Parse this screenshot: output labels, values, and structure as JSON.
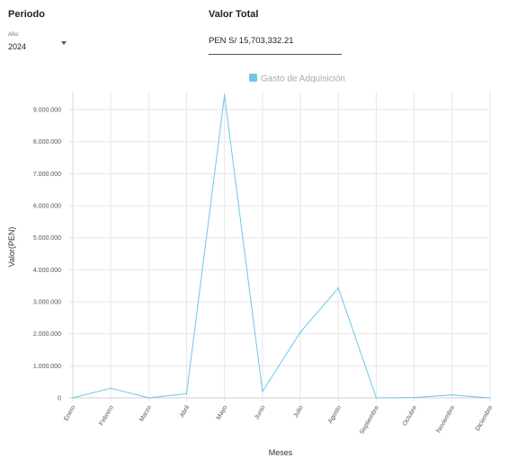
{
  "filters": {
    "period_title": "Periodo",
    "year_caption": "Año:",
    "year_value": "2024",
    "total_title": "Valor Total",
    "total_value": "PEN S/  15,703,332.21"
  },
  "colors": {
    "series": "#6ec6ea",
    "grid": "#e6e6e6"
  },
  "chart_data": {
    "type": "line",
    "categories": [
      "Enero",
      "Febrero",
      "Marzo",
      "Abril",
      "Mayo",
      "Junio",
      "Julio",
      "Agosto",
      "Septiembre",
      "Octubre",
      "Noviembre",
      "Diciembre"
    ],
    "series": [
      {
        "name": "Gasto de Adquisición",
        "values": [
          0,
          300000,
          0,
          130000,
          9450000,
          200000,
          2050000,
          3430000,
          0,
          10000,
          90000,
          0
        ]
      }
    ],
    "xlabel": "Meses",
    "ylabel": "Valor(PEN)",
    "ylim": [
      0,
      9450000
    ],
    "yticks": [
      0,
      1000000,
      2000000,
      3000000,
      4000000,
      5000000,
      6000000,
      7000000,
      8000000,
      9000000
    ],
    "ytick_labels": [
      "0",
      "1.000.000",
      "2.000.000",
      "3.000.000",
      "4.000.000",
      "5.000.000",
      "6.000.000",
      "7.000.000",
      "8.000.000",
      "9.000.000"
    ],
    "grid": true,
    "legend": "top-center"
  }
}
